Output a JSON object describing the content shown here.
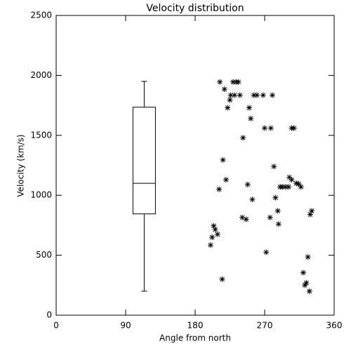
{
  "chart_data": {
    "type": "scatter",
    "title": "Velocity distribution",
    "x_label": "Angle from north",
    "y_label": "Velocity (km/s)",
    "xlim": [
      0,
      360
    ],
    "xticks": [
      0,
      90,
      180,
      270,
      360
    ],
    "ylim": [
      0,
      2500
    ],
    "yticks": [
      0,
      500,
      1000,
      1500,
      2000,
      2500
    ],
    "color": "#000000",
    "marker": "asterisk",
    "box": {
      "x": 114,
      "whisker_low": 200,
      "q1": 845,
      "median": 1100,
      "q3": 1735,
      "whisker_high": 1950
    },
    "x": [
      212,
      218,
      225,
      229,
      233,
      236,
      226,
      231,
      238,
      222,
      250,
      256,
      260,
      268,
      280,
      252,
      270,
      278,
      305,
      308,
      242,
      216,
      220,
      211,
      248,
      282,
      302,
      305,
      311,
      314,
      317,
      290,
      293,
      297,
      301,
      284,
      254,
      287,
      241,
      246,
      277,
      288,
      331,
      329,
      204,
      206,
      209,
      202,
      200,
      272,
      326,
      320,
      324,
      322,
      328,
      215
    ],
    "values": [
      1945,
      1885,
      1795,
      1945,
      1945,
      1945,
      1835,
      1835,
      1835,
      1730,
      1730,
      1835,
      1835,
      1835,
      1835,
      1640,
      1560,
      1560,
      1560,
      1560,
      1480,
      1295,
      1130,
      1050,
      1090,
      1240,
      1150,
      1130,
      1100,
      1095,
      1070,
      1070,
      1070,
      1070,
      1070,
      980,
      965,
      870,
      815,
      800,
      815,
      760,
      870,
      840,
      745,
      715,
      675,
      650,
      585,
      525,
      485,
      355,
      270,
      250,
      200,
      300
    ]
  }
}
